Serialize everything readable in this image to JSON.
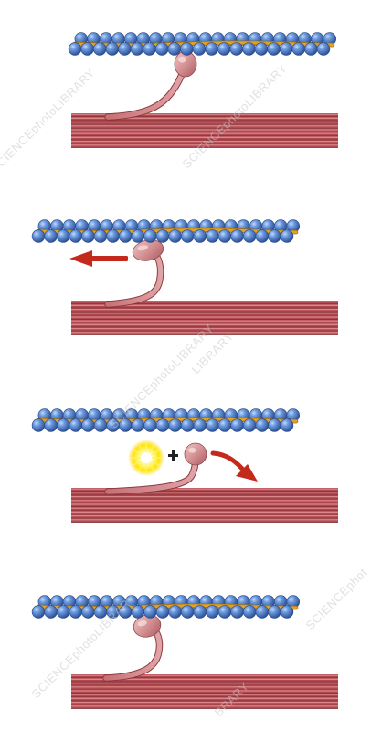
{
  "figure": {
    "panel_count": 4,
    "watermarks": [
      "SCIENCEphotoLIBRARY",
      "SCIENCEphotoLIBRARY",
      "SCIENCEphotoLIBRARY",
      "SCIENCEphotoLIBRARY",
      "SCIENCEphot",
      "LIBRARY",
      "BRARY"
    ],
    "colors": {
      "actin_bead": "#4a7cc7",
      "actin_bead_highlight": "#9cc0ef",
      "tropomyosin": "#e0a226",
      "myosin_filament": "#b04a50",
      "myosin_filament_light": "#e59095",
      "myosin_head": "#d9989a",
      "arrow": "#c42a1c",
      "atp_glow": "#ffe600",
      "plus_sign": "#222222"
    },
    "icons": [
      "left-arrow-icon",
      "curved-arrow-icon",
      "atp-burst-icon",
      "plus-icon"
    ]
  }
}
